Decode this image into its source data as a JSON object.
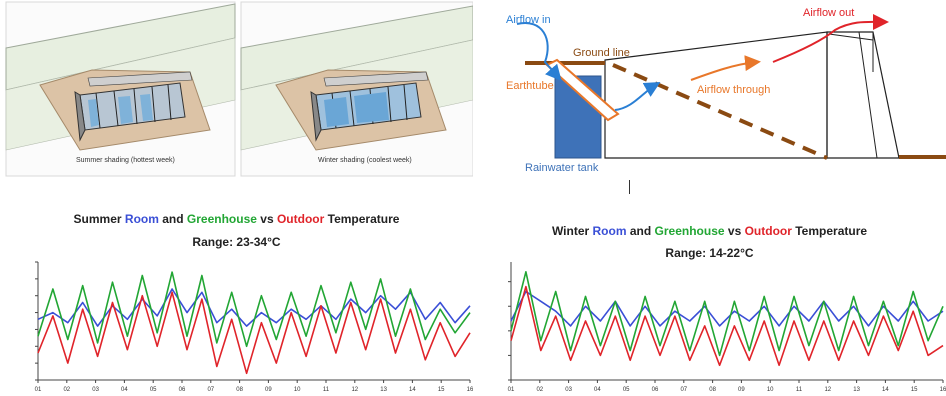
{
  "colors": {
    "room": "#3a4fd6",
    "greenhouse": "#22a634",
    "outdoor": "#e0242a",
    "arrow_blue": "#2a7fd4",
    "arrow_orange": "#e8772a",
    "arrow_red": "#e0242a",
    "earth": "#8a4a12",
    "tank": "#3e72b8"
  },
  "top_left": {
    "summer_caption": "Summer shading (hottest week)",
    "winter_caption": "Winter shading (coolest week)"
  },
  "diagram": {
    "airflow_in": "Airflow in",
    "airflow_out": "Airflow out",
    "ground_line": "Ground line",
    "earthtube": "Earthtube",
    "airflow_through": "Airflow through",
    "rainwater_tank": "Rainwater tank"
  },
  "chart_data": [
    {
      "type": "line",
      "title_parts": [
        "Summer ",
        "Room",
        " and ",
        "Greenhouse",
        " vs ",
        "Outdoor",
        " Temperature"
      ],
      "range_label": "Range: 23-34°C",
      "x_ticks": [
        "01",
        "02",
        "03",
        "04",
        "05",
        "06",
        "07",
        "08",
        "09",
        "10",
        "11",
        "12",
        "13",
        "14",
        "15",
        "16"
      ],
      "ylim": [
        10,
        45
      ],
      "series": [
        {
          "name": "Room",
          "color": "#3a4fd6",
          "values": [
            28,
            30,
            27,
            33,
            26,
            32,
            28,
            34,
            29,
            37,
            30,
            36,
            27,
            31,
            26,
            30,
            27,
            31,
            28,
            32,
            28,
            34,
            30,
            35,
            31,
            36,
            28,
            33,
            27,
            32
          ]
        },
        {
          "name": "Greenhouse",
          "color": "#22a634",
          "values": [
            23,
            37,
            22,
            38,
            21,
            39,
            23,
            41,
            24,
            42,
            23,
            41,
            21,
            36,
            20,
            35,
            22,
            36,
            23,
            38,
            24,
            39,
            25,
            40,
            23,
            37,
            22,
            31,
            24,
            30
          ]
        },
        {
          "name": "Outdoor",
          "color": "#e0242a",
          "values": [
            18,
            29,
            15,
            31,
            17,
            33,
            19,
            35,
            20,
            36,
            19,
            34,
            14,
            28,
            12,
            27,
            15,
            30,
            17,
            32,
            18,
            33,
            19,
            34,
            18,
            31,
            16,
            27,
            17,
            24
          ]
        }
      ]
    },
    {
      "type": "line",
      "title_parts": [
        "Winter ",
        "Room",
        " and ",
        "Greenhouse",
        " vs ",
        "Outdoor",
        " Temperature"
      ],
      "range_label": "Range: 14-22°C",
      "x_ticks": [
        "01",
        "02",
        "03",
        "04",
        "05",
        "06",
        "07",
        "08",
        "09",
        "10",
        "11",
        "12",
        "13",
        "14",
        "15",
        "16"
      ],
      "ylim": [
        4,
        28
      ],
      "series": [
        {
          "name": "Room",
          "color": "#3a4fd6",
          "values": [
            16,
            22,
            20,
            18,
            15,
            19,
            16,
            20,
            15,
            19,
            15,
            18,
            16,
            19,
            15,
            18,
            16,
            19,
            15,
            19,
            16,
            20,
            16,
            19,
            15,
            19,
            16,
            20,
            16,
            18
          ]
        },
        {
          "name": "Greenhouse",
          "color": "#22a634",
          "values": [
            14,
            26,
            12,
            22,
            10,
            21,
            11,
            20,
            10,
            21,
            11,
            20,
            10,
            20,
            9,
            20,
            10,
            21,
            10,
            21,
            11,
            20,
            10,
            21,
            11,
            20,
            11,
            22,
            12,
            19
          ]
        },
        {
          "name": "Outdoor",
          "color": "#e0242a",
          "values": [
            12,
            23,
            10,
            17,
            8,
            16,
            9,
            17,
            8,
            17,
            9,
            17,
            8,
            15,
            7,
            15,
            8,
            16,
            7,
            16,
            8,
            16,
            8,
            16,
            9,
            17,
            10,
            18,
            9,
            11
          ]
        }
      ]
    }
  ]
}
